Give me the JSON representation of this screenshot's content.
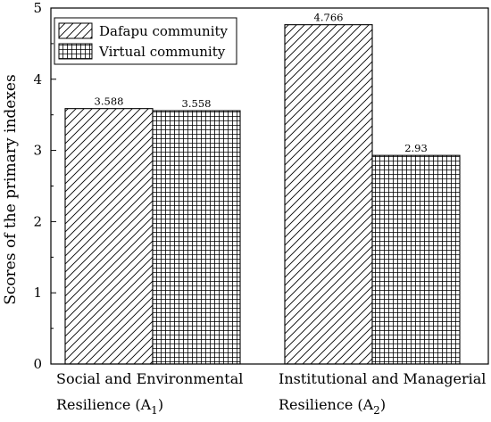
{
  "chart_data": {
    "type": "bar",
    "title": "",
    "xlabel": "",
    "ylabel": "Scores of the primary indexes",
    "ylim": [
      0,
      5
    ],
    "yticks": [
      0,
      1,
      2,
      3,
      4,
      5
    ],
    "grid": false,
    "legend_position": "top-left",
    "categories": [
      {
        "line1": "Social and Environmental",
        "line2_main": "Resilience (A",
        "line2_sub": "1",
        "line2_end": ")"
      },
      {
        "line1": "Institutional and Managerial",
        "line2_main": "Resilience (A",
        "line2_sub": "2",
        "line2_end": ")"
      }
    ],
    "series": [
      {
        "name": "Dafapu community",
        "pattern": "diagonal-hatch",
        "values": [
          3.588,
          4.766
        ],
        "value_labels": [
          "3.588",
          "4.766"
        ]
      },
      {
        "name": "Virtual community",
        "pattern": "grid-hatch",
        "values": [
          3.558,
          2.93
        ],
        "value_labels": [
          "3.558",
          "2.93"
        ]
      }
    ]
  }
}
